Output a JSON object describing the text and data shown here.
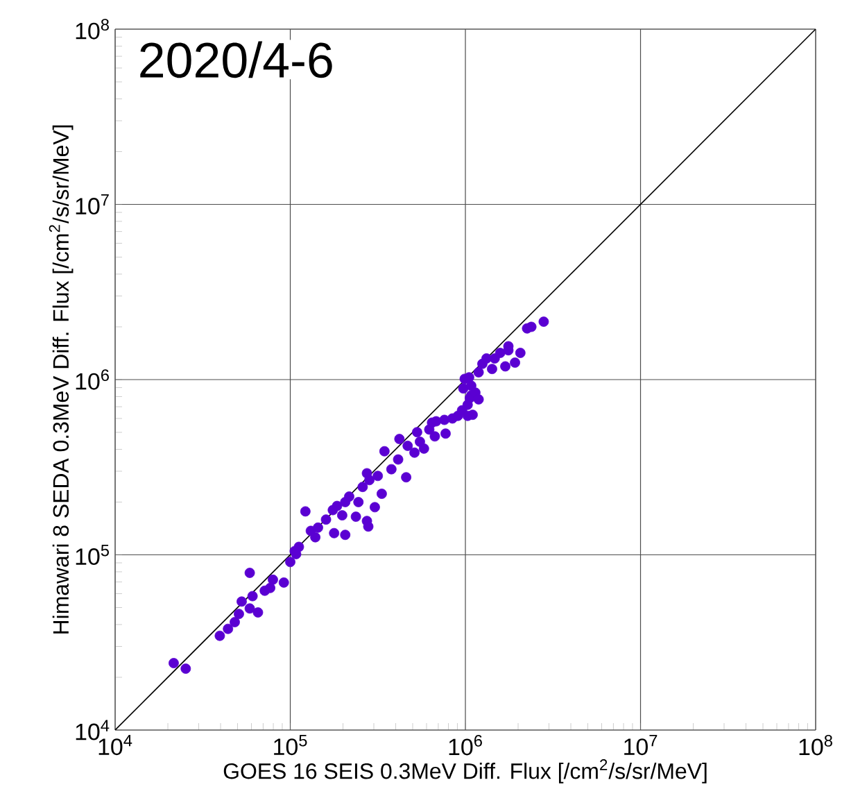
{
  "chart_data": {
    "type": "scatter",
    "title": "2020/4-6",
    "xlabel": "GOES 16 SEIS 0.3MeV Diff. Flux [/cm$^{2}$/s/sr/MeV]",
    "ylabel": "Himawari 8 SEDA 0.3MeV Diff. Flux [/cm$^{2}$/s/sr/MeV]",
    "log": "xy",
    "grid": true,
    "xlim": [
      10000,
      100000000
    ],
    "ylim": [
      10000,
      100000000
    ],
    "xticks": [
      {
        "value": 10000,
        "label": "10$^{4}$"
      },
      {
        "value": 100000,
        "label": "10$^{5}$"
      },
      {
        "value": 1000000,
        "label": "10$^{6}$"
      },
      {
        "value": 10000000,
        "label": "10$^{7}$"
      },
      {
        "value": 100000000,
        "label": "10$^{8}$"
      }
    ],
    "yticks": [
      {
        "value": 10000,
        "label": "10$^{4}$"
      },
      {
        "value": 100000,
        "label": "10$^{5}$"
      },
      {
        "value": 1000000,
        "label": "10$^{6}$"
      },
      {
        "value": 10000000,
        "label": "10$^{7}$"
      },
      {
        "value": 100000000,
        "label": "10$^{8}$"
      }
    ],
    "series": [
      {
        "marker": "circle",
        "color": "#5a00d2",
        "x": [
          21600,
          25300,
          39600,
          44100,
          48200,
          50900,
          52800,
          58700,
          58700,
          65400,
          60900,
          71500,
          76800,
          91900,
          100000,
          108000,
          112000,
          122000,
          131000,
          139000,
          144000,
          160000,
          175000,
          185000,
          198000,
          206000,
          178000,
          206000,
          237000,
          217000,
          245000,
          259000,
          274000,
          283000,
          316000,
          333000,
          304000,
          274000,
          279000,
          345000,
          378000,
          413000,
          420000,
          468000,
          512000,
          550000,
          530000,
          622000,
          645000,
          681000,
          759000,
          843000,
          771000,
          906000,
          957000,
          1030000,
          973000,
          1030000,
          1060000,
          1080000,
          1100000,
          1080000,
          991000,
          1050000,
          1190000,
          1250000,
          1320000,
          1470000,
          1580000,
          1760000,
          1690000,
          1920000,
          2060000,
          2250000,
          2380000,
          2800000,
          1760000,
          1420000,
          1140000,
          1190000,
          669000,
          580000,
          459000,
          106000,
          79600
        ],
        "values": [
          24100,
          22400,
          34500,
          37800,
          41300,
          46000,
          54100,
          78900,
          49400,
          46900,
          58100,
          62400,
          64700,
          69500,
          91000,
          101000,
          111000,
          177000,
          137000,
          126000,
          143000,
          159000,
          180000,
          190000,
          168000,
          200000,
          133000,
          130000,
          165000,
          215000,
          200000,
          244000,
          292000,
          267000,
          282000,
          223000,
          187000,
          156000,
          145000,
          390000,
          308000,
          350000,
          458000,
          419000,
          383000,
          442000,
          501000,
          519000,
          568000,
          578000,
          589000,
          600000,
          492000,
          621000,
          668000,
          718000,
          890000,
          621000,
          785000,
          923000,
          630000,
          813000,
          1010000,
          1030000,
          1100000,
          1230000,
          1320000,
          1320000,
          1420000,
          1470000,
          1190000,
          1250000,
          1420000,
          1960000,
          2000000,
          2140000,
          1550000,
          1150000,
          843000,
          771000,
          474000,
          404000,
          277000,
          105000,
          72100
        ]
      },
      {
        "type": "line",
        "color": "#000000",
        "x": [
          10000,
          100000000
        ],
        "values": [
          10000,
          100000000
        ]
      }
    ]
  }
}
